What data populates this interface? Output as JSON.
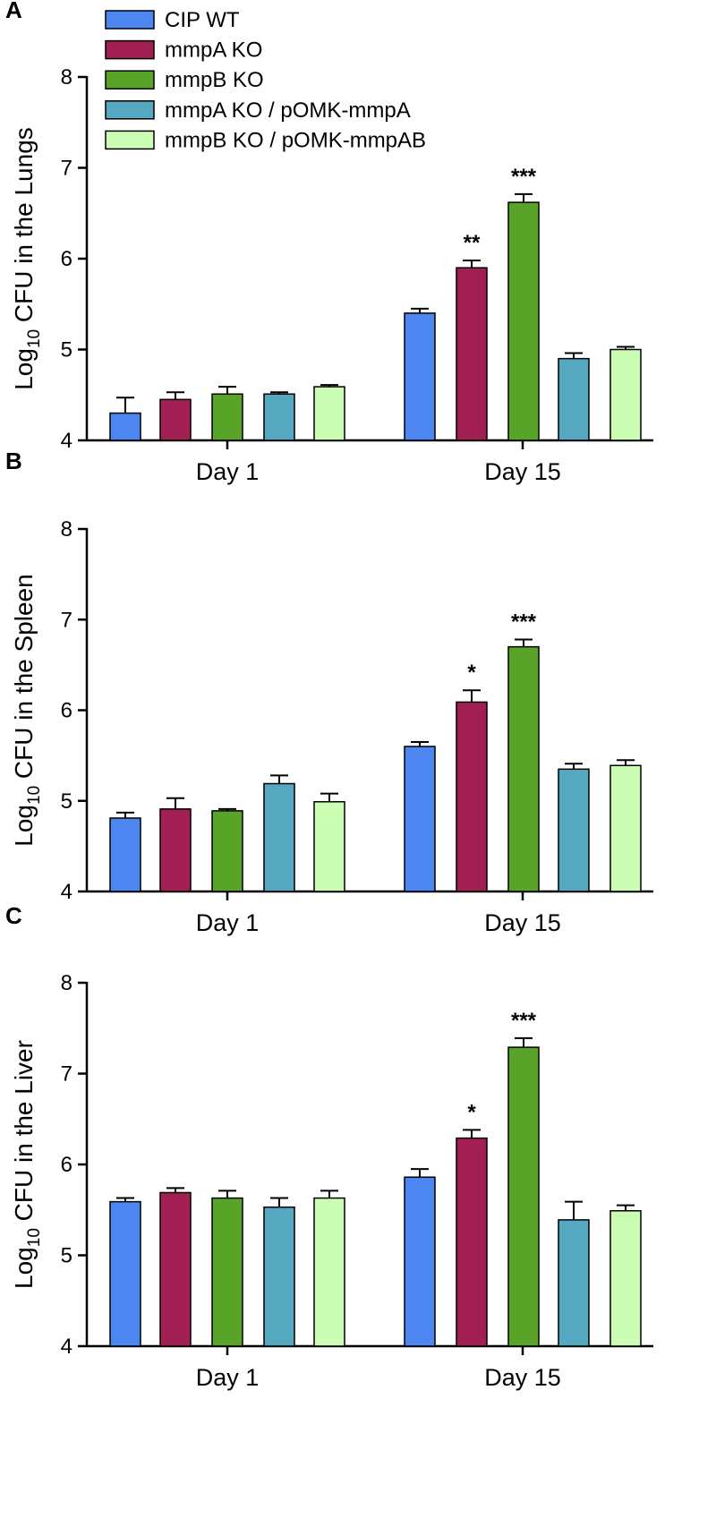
{
  "colors": {
    "CIP WT": "#4d86f0",
    "mmpA KO": "#a21f54",
    "mmpB KO": "#5aa329",
    "mmpA KO / pOMK-mmpA": "#55a8c0",
    "mmpB KO / pOMK-mmpAB": "#ccfdb4"
  },
  "legend": {
    "items": [
      "CIP WT",
      "mmpA KO",
      "mmpB KO",
      "mmpA KO / pOMK-mmpA",
      "mmpB KO / pOMK-mmpAB"
    ]
  },
  "chart_data": [
    {
      "panel": "A",
      "type": "bar",
      "title": "",
      "xlabel": "",
      "ylabel_main": "Log",
      "ylabel_sub": "10",
      "ylabel_rest": " CFU in the Lungs",
      "ylim": [
        4,
        8
      ],
      "yticks": [
        "4",
        "5",
        "6",
        "7",
        "8"
      ],
      "categories": [
        "Day 1",
        "Day 15"
      ],
      "series": [
        {
          "name": "CIP WT",
          "values": [
            4.3,
            5.4
          ],
          "errors": [
            0.17,
            0.05
          ],
          "sig": [
            "",
            ""
          ]
        },
        {
          "name": "mmpA KO",
          "values": [
            4.45,
            5.9
          ],
          "errors": [
            0.08,
            0.08
          ],
          "sig": [
            "",
            "**"
          ]
        },
        {
          "name": "mmpB KO",
          "values": [
            4.51,
            6.62
          ],
          "errors": [
            0.08,
            0.09
          ],
          "sig": [
            "",
            "***"
          ]
        },
        {
          "name": "mmpA KO / pOMK-mmpA",
          "values": [
            4.51,
            4.9
          ],
          "errors": [
            0.02,
            0.06
          ],
          "sig": [
            "",
            ""
          ]
        },
        {
          "name": "mmpB KO / pOMK-mmpAB",
          "values": [
            4.59,
            5.0
          ],
          "errors": [
            0.02,
            0.03
          ],
          "sig": [
            "",
            ""
          ]
        }
      ]
    },
    {
      "panel": "B",
      "type": "bar",
      "title": "",
      "xlabel": "",
      "ylabel_main": "Log",
      "ylabel_sub": "10",
      "ylabel_rest": " CFU in the Spleen",
      "ylim": [
        4,
        8
      ],
      "yticks": [
        "4",
        "5",
        "6",
        "7",
        "8"
      ],
      "categories": [
        "Day 1",
        "Day 15"
      ],
      "series": [
        {
          "name": "CIP WT",
          "values": [
            4.81,
            5.6
          ],
          "errors": [
            0.06,
            0.05
          ],
          "sig": [
            "",
            ""
          ]
        },
        {
          "name": "mmpA KO",
          "values": [
            4.91,
            6.09
          ],
          "errors": [
            0.12,
            0.13
          ],
          "sig": [
            "",
            "*"
          ]
        },
        {
          "name": "mmpB KO",
          "values": [
            4.89,
            6.7
          ],
          "errors": [
            0.02,
            0.08
          ],
          "sig": [
            "",
            "***"
          ]
        },
        {
          "name": "mmpA KO / pOMK-mmpA",
          "values": [
            5.19,
            5.35
          ],
          "errors": [
            0.09,
            0.06
          ],
          "sig": [
            "",
            ""
          ]
        },
        {
          "name": "mmpB KO / pOMK-mmpAB",
          "values": [
            4.99,
            5.39
          ],
          "errors": [
            0.09,
            0.06
          ],
          "sig": [
            "",
            ""
          ]
        }
      ]
    },
    {
      "panel": "C",
      "type": "bar",
      "title": "",
      "xlabel": "",
      "ylabel_main": "Log",
      "ylabel_sub": "10",
      "ylabel_rest": " CFU in the Liver",
      "ylim": [
        4,
        8
      ],
      "yticks": [
        "4",
        "5",
        "6",
        "7",
        "8"
      ],
      "categories": [
        "Day 1",
        "Day 15"
      ],
      "series": [
        {
          "name": "CIP WT",
          "values": [
            5.59,
            5.86
          ],
          "errors": [
            0.04,
            0.09
          ],
          "sig": [
            "",
            ""
          ]
        },
        {
          "name": "mmpA KO",
          "values": [
            5.69,
            6.29
          ],
          "errors": [
            0.05,
            0.09
          ],
          "sig": [
            "",
            "*"
          ]
        },
        {
          "name": "mmpB KO",
          "values": [
            5.63,
            7.29
          ],
          "errors": [
            0.08,
            0.1
          ],
          "sig": [
            "",
            "***"
          ]
        },
        {
          "name": "mmpA KO / pOMK-mmpA",
          "values": [
            5.53,
            5.39
          ],
          "errors": [
            0.1,
            0.2
          ],
          "sig": [
            "",
            ""
          ]
        },
        {
          "name": "mmpB KO / pOMK-mmpAB",
          "values": [
            5.63,
            5.49
          ],
          "errors": [
            0.08,
            0.06
          ],
          "sig": [
            "",
            ""
          ]
        }
      ]
    }
  ]
}
